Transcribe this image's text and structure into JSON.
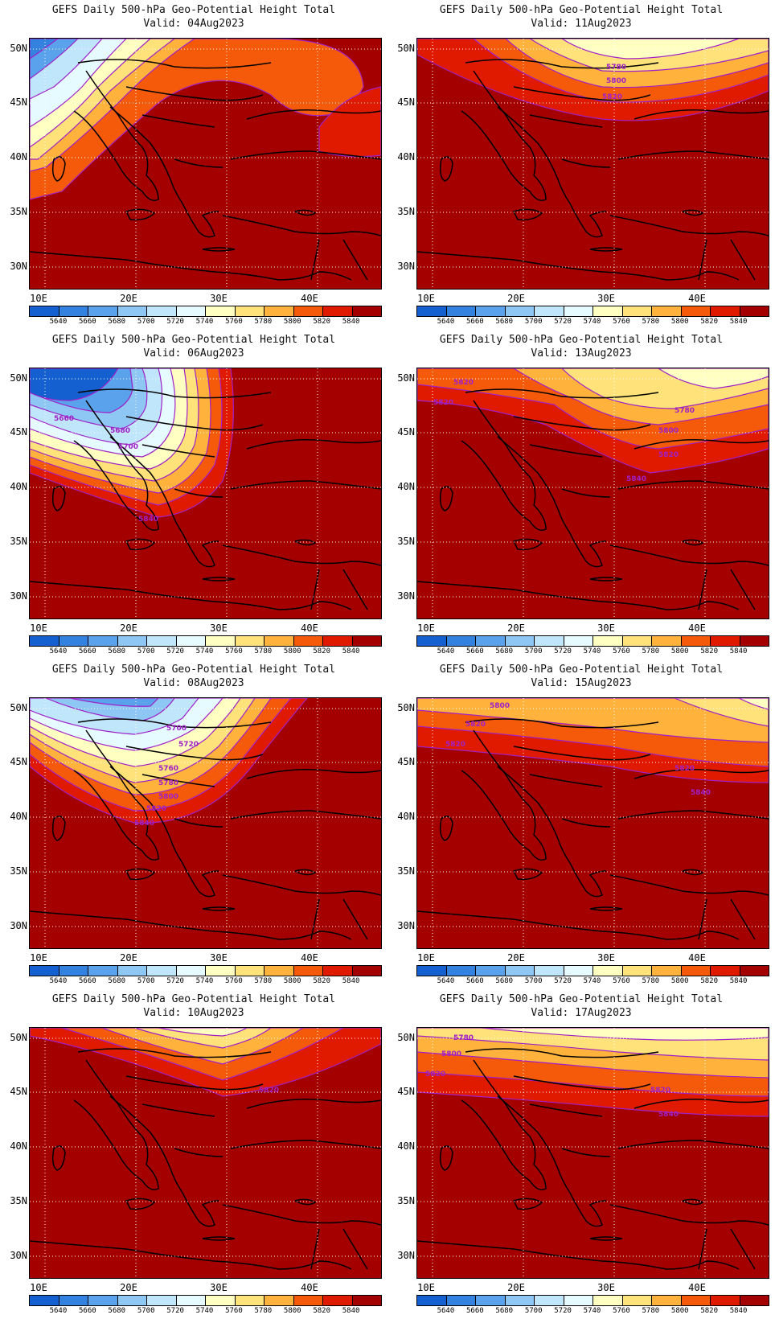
{
  "common": {
    "title": "GEFS Daily 500-hPa Geo-Potential Height Total",
    "lat_labels": [
      "50N",
      "45N",
      "40N",
      "35N",
      "30N"
    ],
    "lon_labels": [
      "10E",
      "20E",
      "30E",
      "40E"
    ],
    "colorbar": {
      "labels": [
        "5640",
        "5660",
        "5680",
        "5700",
        "5720",
        "5740",
        "5760",
        "5780",
        "5800",
        "5820",
        "5840"
      ],
      "colors": [
        "#1560d0",
        "#3482e0",
        "#5aa2ec",
        "#8ec6f4",
        "#bfe6fa",
        "#e6fbff",
        "#ffffc2",
        "#ffe27a",
        "#ffb23c",
        "#f55a0a",
        "#e01a00",
        "#a50000"
      ]
    },
    "contour_color": "#a020c8"
  },
  "panels": [
    {
      "valid": "Valid: 04Aug2023",
      "contour_labels": []
    },
    {
      "valid": "Valid: 11Aug2023",
      "contour_labels": [
        "5780",
        "5800",
        "5820"
      ]
    },
    {
      "valid": "Valid: 06Aug2023",
      "contour_labels": [
        "5660",
        "5680",
        "5700",
        "5840"
      ]
    },
    {
      "valid": "Valid: 13Aug2023",
      "contour_labels": [
        "5820",
        "5820",
        "5780",
        "5800",
        "5820",
        "5840"
      ]
    },
    {
      "valid": "Valid: 08Aug2023",
      "contour_labels": [
        "5700",
        "5720",
        "5760",
        "5780",
        "5800",
        "5820",
        "5840"
      ]
    },
    {
      "valid": "Valid: 15Aug2023",
      "contour_labels": [
        "5800",
        "5820",
        "5820",
        "5820",
        "5840"
      ]
    },
    {
      "valid": "Valid: 10Aug2023",
      "contour_labels": [
        "5820"
      ]
    },
    {
      "valid": "Valid: 17Aug2023",
      "contour_labels": [
        "5780",
        "5800",
        "5820",
        "5820",
        "5840"
      ]
    }
  ]
}
